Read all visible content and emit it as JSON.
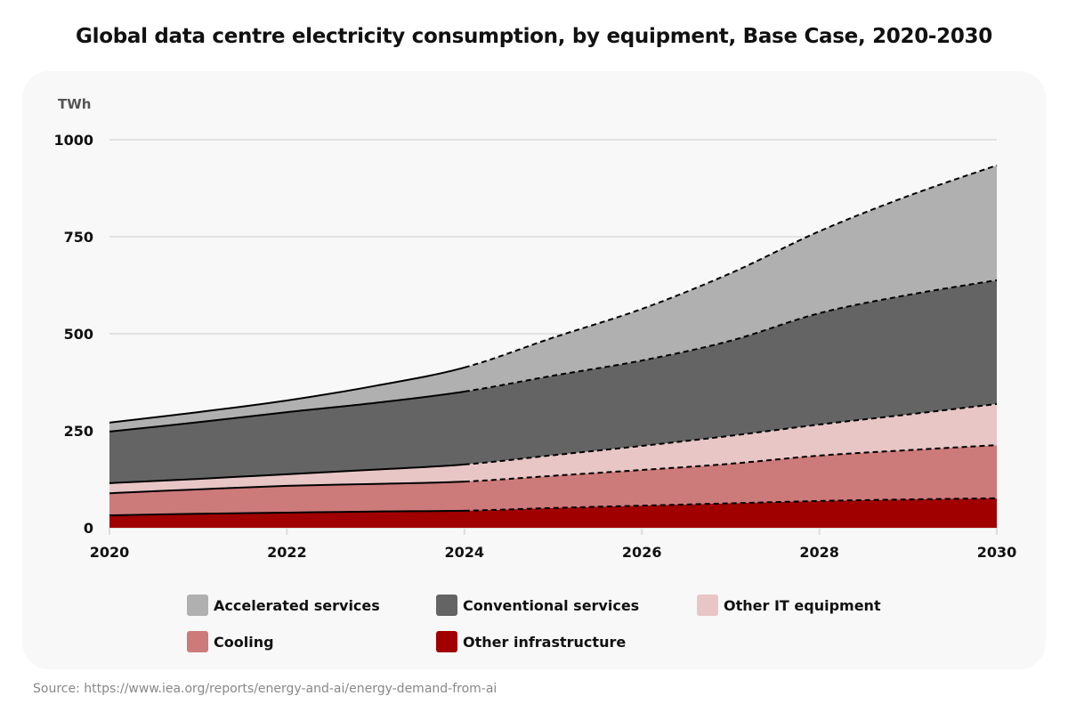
{
  "chart_data": {
    "type": "area",
    "title": "Global data centre electricity consumption, by equipment, Base Case, 2020-2030",
    "ylabel": "TWh",
    "xlabel": "",
    "x": [
      2020,
      2021,
      2022,
      2023,
      2024,
      2025,
      2026,
      2027,
      2028,
      2029,
      2030
    ],
    "x_ticks": [
      "2020",
      "2022",
      "2024",
      "2026",
      "2028",
      "2030"
    ],
    "y_ticks": [
      "0",
      "250",
      "500",
      "750",
      "1000"
    ],
    "ylim": [
      0,
      1000
    ],
    "xlim": [
      2020,
      2030
    ],
    "stacked": true,
    "projection_from": 2024,
    "grid": true,
    "legend_position": "bottom",
    "series": [
      {
        "name": "Other infrastructure",
        "color": "#a00000",
        "values": [
          32,
          36,
          39,
          42,
          44,
          51,
          57,
          63,
          69,
          73,
          76
        ]
      },
      {
        "name": "Cooling",
        "color": "#cd7a7a",
        "values": [
          57,
          63,
          69,
          71,
          75,
          83,
          92,
          102,
          117,
          127,
          137
        ]
      },
      {
        "name": "Other IT equipment",
        "color": "#e8c6c6",
        "values": [
          26,
          27,
          30,
          37,
          44,
          53,
          62,
          72,
          80,
          92,
          106
        ]
      },
      {
        "name": "Conventional services",
        "color": "#646464",
        "values": [
          133,
          146,
          160,
          172,
          188,
          205,
          220,
          245,
          287,
          308,
          319
        ]
      },
      {
        "name": "Accelerated services",
        "color": "#b0b0b0",
        "values": [
          23,
          26,
          30,
          44,
          62,
          98,
          133,
          174,
          211,
          255,
          296
        ]
      }
    ],
    "legend_order": [
      "Accelerated services",
      "Conventional services",
      "Other IT equipment",
      "Cooling",
      "Other infrastructure"
    ]
  },
  "source": "Source: https://www.iea.org/reports/energy-and-ai/energy-demand-from-ai"
}
